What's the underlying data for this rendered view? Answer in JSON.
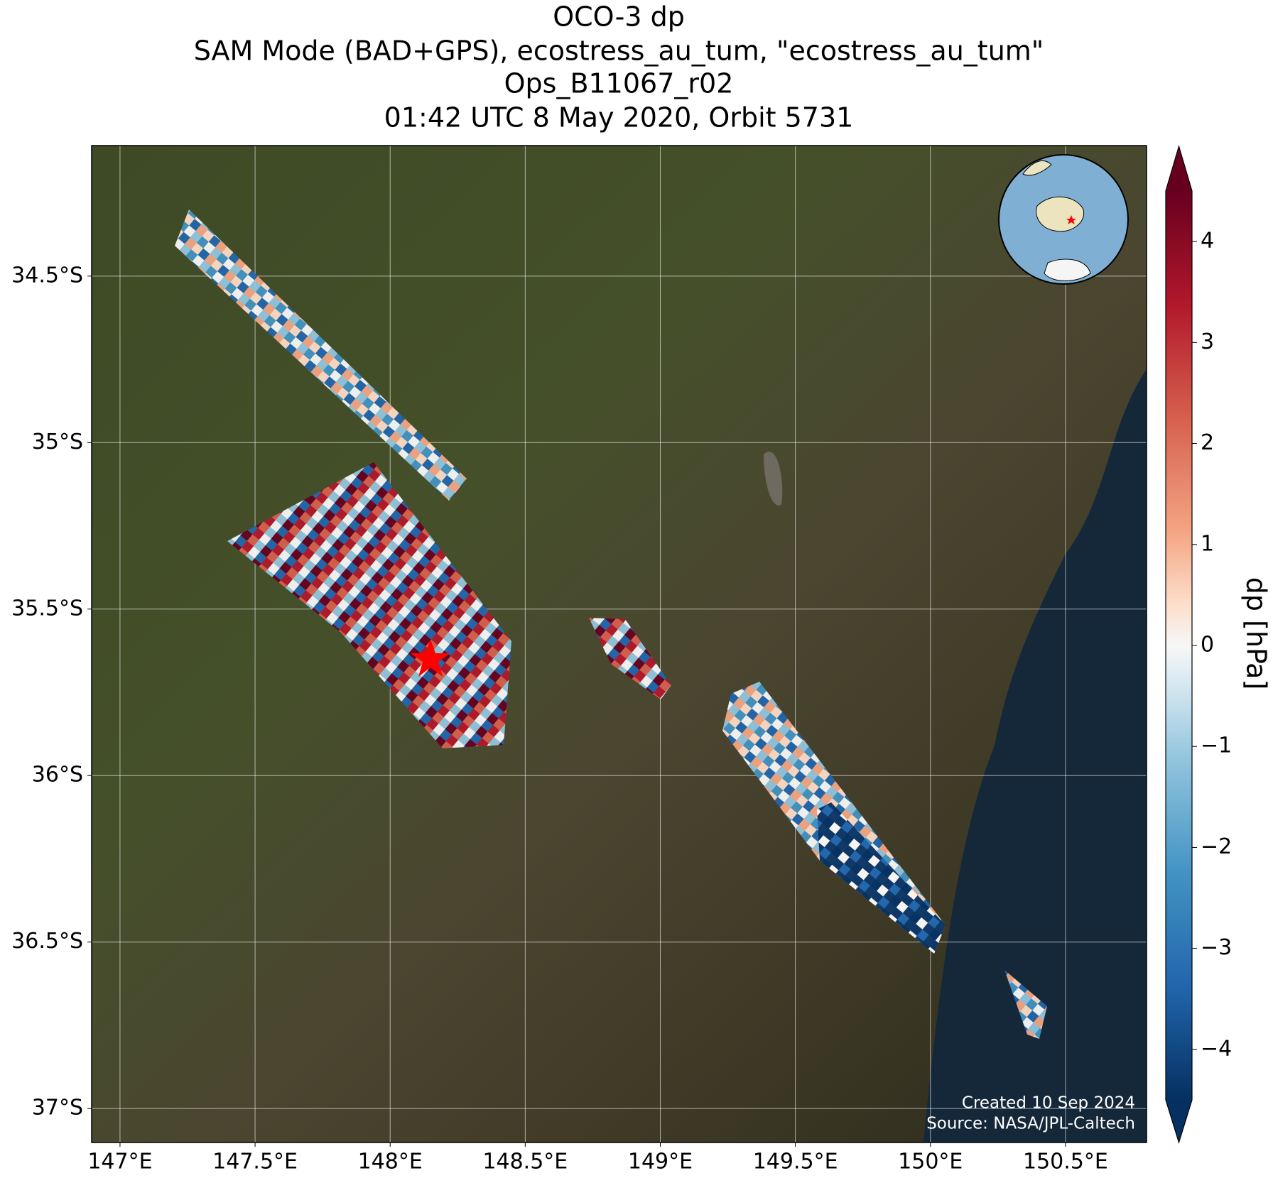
{
  "map": {
    "title": [
      "OCO-3 dp",
      "SAM Mode (BAD+GPS), ecostress_au_tum, \"ecostress_au_tum\"",
      "Ops_B11067_r02",
      "01:42 UTC 8 May 2020, Orbit 5731"
    ],
    "xlim": [
      146.895,
      150.8
    ],
    "ylim": [
      -37.102,
      -34.108
    ],
    "xticks": [
      {
        "value": 147,
        "label": "147°E"
      },
      {
        "value": 147.5,
        "label": "147.5°E"
      },
      {
        "value": 148,
        "label": "148°E"
      },
      {
        "value": 148.5,
        "label": "148.5°E"
      },
      {
        "value": 149,
        "label": "149°E"
      },
      {
        "value": 149.5,
        "label": "149.5°E"
      },
      {
        "value": 150,
        "label": "150°E"
      },
      {
        "value": 150.5,
        "label": "150.5°E"
      }
    ],
    "yticks": [
      {
        "value": -34.5,
        "label": "34.5°S"
      },
      {
        "value": -35,
        "label": "35°S"
      },
      {
        "value": -35.5,
        "label": "35.5°S"
      },
      {
        "value": -36,
        "label": "36°S"
      },
      {
        "value": -36.5,
        "label": "36.5°S"
      },
      {
        "value": -37,
        "label": "37°S"
      }
    ],
    "grid": true,
    "colorbar": {
      "label": "dp [hPa]",
      "lim": [
        -4.5,
        4.5
      ],
      "ticks": [
        {
          "value": -4,
          "label": "−4"
        },
        {
          "value": -3,
          "label": "−3"
        },
        {
          "value": -2,
          "label": "−2"
        },
        {
          "value": -1,
          "label": "−1"
        },
        0,
        1,
        2,
        3,
        4
      ]
    },
    "credits": [
      "Created 10 Sep 2024",
      "Source: NASA/JPL-Caltech"
    ]
  }
}
